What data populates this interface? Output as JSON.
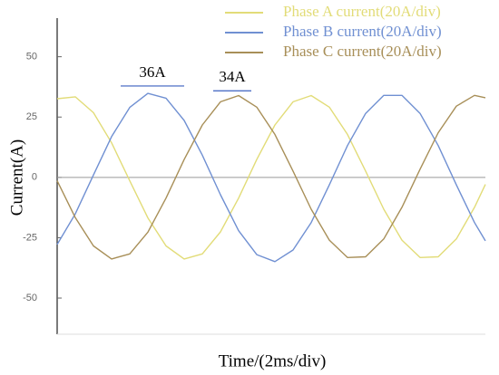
{
  "chart_data": {
    "type": "line",
    "ylabel": "Current(A)",
    "xlabel": "Time/(2ms/div)",
    "x": [
      0,
      20,
      40,
      60,
      80,
      100,
      120,
      140,
      160,
      180,
      200,
      220,
      240,
      260,
      280,
      300,
      320,
      340,
      360,
      380,
      400,
      420,
      440,
      460,
      472
    ],
    "xlim": [
      0,
      472
    ],
    "ylim": [
      -65,
      66
    ],
    "yticks": [
      50,
      25,
      0,
      -25,
      -50
    ],
    "series": [
      {
        "name": "Phase A current(20A/div)",
        "color": "#e2dc78",
        "values": [
          32.6,
          33.4,
          26.8,
          14.3,
          -1.4,
          -16.8,
          -28.4,
          -33.8,
          -31.7,
          -22.6,
          -8.6,
          7.4,
          21.7,
          31.3,
          33.9,
          29.1,
          17.8,
          2.6,
          -13.2,
          -26.0,
          -33.2,
          -32.9,
          -25.5,
          -12.4,
          -2.9
        ]
      },
      {
        "name": "Phase B current(20A/div)",
        "color": "#7090d2",
        "values": [
          -27.8,
          -15.1,
          1.0,
          16.9,
          29.0,
          34.8,
          32.8,
          23.6,
          9.2,
          -7.2,
          -22.1,
          -32.0,
          -34.9,
          -30.1,
          -18.7,
          -3.1,
          13.2,
          26.5,
          34.0,
          34.0,
          26.5,
          13.2,
          -3.1,
          -18.7,
          -26.3
        ]
      },
      {
        "name": "Phase C current(20A/div)",
        "color": "#a88f58",
        "values": [
          -1.4,
          -16.7,
          -28.4,
          -33.8,
          -31.7,
          -22.7,
          -8.6,
          7.4,
          21.7,
          31.3,
          33.9,
          29.1,
          17.8,
          2.6,
          -13.2,
          -26.0,
          -33.2,
          -32.9,
          -25.5,
          -12.4,
          3.4,
          18.5,
          29.5,
          34.0,
          33.0
        ]
      }
    ],
    "annotations": [
      {
        "label": "36A",
        "value": 36
      },
      {
        "label": "34A",
        "value": 34
      }
    ],
    "zero_line": true
  }
}
